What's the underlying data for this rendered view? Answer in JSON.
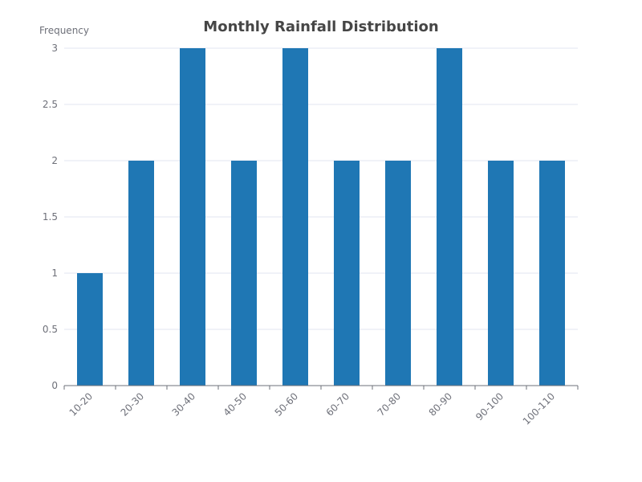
{
  "chart_data": {
    "type": "bar",
    "title": "Monthly Rainfall Distribution",
    "xlabel": "",
    "ylabel": "Frequency",
    "categories": [
      "10-20",
      "20-30",
      "30-40",
      "40-50",
      "50-60",
      "60-70",
      "70-80",
      "80-90",
      "90-100",
      "100-110"
    ],
    "values": [
      1,
      2,
      3,
      2,
      3,
      2,
      2,
      3,
      2,
      2
    ],
    "ylim": [
      0,
      3
    ],
    "yticks": [
      "0",
      "0.5",
      "1",
      "1.5",
      "2",
      "2.5",
      "3"
    ],
    "grid": true,
    "legend": "none",
    "bar_color": "#1f77b4"
  }
}
